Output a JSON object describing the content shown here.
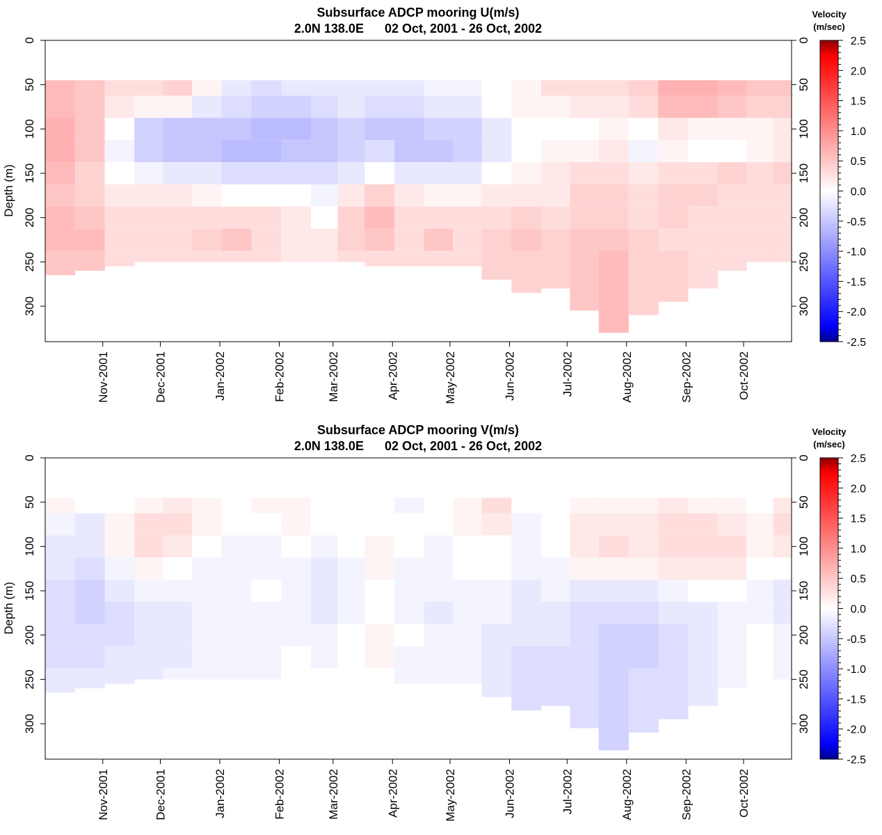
{
  "colorbar": {
    "title_line1": "Velocity",
    "title_line2": "(m/sec)",
    "range": [
      -2.5,
      2.5
    ],
    "tick_labels": [
      "2.5",
      "2.0",
      "1.5",
      "1.0",
      "0.5",
      "0.0",
      "-0.5",
      "-1.0",
      "-1.5",
      "-2.0",
      "-2.5"
    ],
    "colors": {
      "max": "#8b0000",
      "high": "#ff0000",
      "zero": "#ffffff",
      "low": "#0000ff",
      "min": "#00008b"
    }
  },
  "chart_data": [
    {
      "type": "heatmap",
      "title": "Subsurface ADCP mooring U(m/s)",
      "subtitle": "2.0N 138.0E      02 Oct, 2001 - 26 Oct, 2002",
      "xlabel": "",
      "ylabel": "Depth (m)",
      "ylim": [
        0,
        340
      ],
      "y_reversed": true,
      "y_ticks": [
        0,
        50,
        100,
        150,
        200,
        250,
        300
      ],
      "y_tick_labels": [
        "0",
        "50",
        "100",
        "150",
        "200",
        "250",
        "300"
      ],
      "x_start": "2001-10-02",
      "x_end": "2002-10-26",
      "x_tick_labels": [
        "Nov-2001",
        "Dec-2001",
        "Jan-2002",
        "Feb-2002",
        "Mar-2002",
        "Apr-2002",
        "May-2002",
        "Jun-2002",
        "Jul-2002",
        "Aug-2002",
        "Sep-2002",
        "Oct-2002"
      ],
      "x_tick_dates": [
        "2001-11-01",
        "2001-12-01",
        "2002-01-01",
        "2002-02-01",
        "2002-03-01",
        "2002-04-01",
        "2002-05-01",
        "2002-06-01",
        "2002-07-01",
        "2002-08-01",
        "2002-09-01",
        "2002-10-01"
      ],
      "depths": [
        50,
        75,
        100,
        125,
        150,
        175,
        200,
        225,
        250
      ],
      "columns": [
        {
          "date": "2001-10-10",
          "bottom": 265,
          "values": [
            0.6,
            0.6,
            0.7,
            0.7,
            0.6,
            0.5,
            0.6,
            0.6,
            0.5
          ]
        },
        {
          "date": "2001-10-25",
          "bottom": 260,
          "values": [
            0.5,
            0.5,
            0.5,
            0.5,
            0.4,
            0.4,
            0.5,
            0.6,
            0.5
          ]
        },
        {
          "date": "2001-11-10",
          "bottom": 255,
          "values": [
            0.3,
            0.2,
            0.0,
            -0.1,
            0.0,
            0.2,
            0.3,
            0.3,
            0.3
          ]
        },
        {
          "date": "2001-11-25",
          "bottom": 250,
          "values": [
            0.3,
            0.1,
            -0.4,
            -0.4,
            -0.1,
            0.2,
            0.3,
            0.3,
            0.3
          ]
        },
        {
          "date": "2001-12-10",
          "bottom": 250,
          "values": [
            0.4,
            0.1,
            -0.5,
            -0.5,
            -0.2,
            0.2,
            0.3,
            0.3,
            0.3
          ]
        },
        {
          "date": "2001-12-25",
          "bottom": 250,
          "values": [
            0.1,
            -0.2,
            -0.5,
            -0.5,
            -0.2,
            0.1,
            0.3,
            0.4,
            0.3
          ]
        },
        {
          "date": "2002-01-10",
          "bottom": 250,
          "values": [
            -0.2,
            -0.3,
            -0.5,
            -0.6,
            -0.3,
            0.0,
            0.3,
            0.5,
            0.3
          ]
        },
        {
          "date": "2002-01-25",
          "bottom": 250,
          "values": [
            -0.3,
            -0.4,
            -0.6,
            -0.6,
            -0.3,
            0.0,
            0.3,
            0.3,
            0.3
          ]
        },
        {
          "date": "2002-02-10",
          "bottom": 250,
          "values": [
            -0.2,
            -0.4,
            -0.6,
            -0.5,
            -0.3,
            0.0,
            0.2,
            0.2,
            0.2
          ]
        },
        {
          "date": "2002-02-25",
          "bottom": 250,
          "values": [
            -0.2,
            -0.3,
            -0.5,
            -0.5,
            -0.3,
            -0.1,
            0.0,
            0.2,
            0.2
          ]
        },
        {
          "date": "2002-03-10",
          "bottom": 250,
          "values": [
            -0.2,
            -0.2,
            -0.4,
            -0.4,
            -0.2,
            0.2,
            0.4,
            0.4,
            0.3
          ]
        },
        {
          "date": "2002-03-25",
          "bottom": 255,
          "values": [
            -0.2,
            -0.3,
            -0.5,
            -0.3,
            0.0,
            0.4,
            0.6,
            0.5,
            0.3
          ]
        },
        {
          "date": "2002-04-10",
          "bottom": 255,
          "values": [
            -0.2,
            -0.3,
            -0.5,
            -0.5,
            -0.2,
            0.2,
            0.3,
            0.3,
            0.3
          ]
        },
        {
          "date": "2002-04-25",
          "bottom": 255,
          "values": [
            -0.1,
            -0.2,
            -0.4,
            -0.5,
            -0.2,
            0.1,
            0.3,
            0.5,
            0.3
          ]
        },
        {
          "date": "2002-05-10",
          "bottom": 255,
          "values": [
            -0.1,
            -0.2,
            -0.4,
            -0.4,
            -0.2,
            0.1,
            0.3,
            0.3,
            0.3
          ]
        },
        {
          "date": "2002-05-25",
          "bottom": 270,
          "values": [
            0.0,
            0.0,
            -0.2,
            -0.2,
            0.0,
            0.2,
            0.3,
            0.4,
            0.4
          ]
        },
        {
          "date": "2002-06-10",
          "bottom": 285,
          "values": [
            0.1,
            0.1,
            0.0,
            0.0,
            0.1,
            0.2,
            0.4,
            0.5,
            0.4
          ]
        },
        {
          "date": "2002-06-25",
          "bottom": 280,
          "values": [
            0.3,
            0.1,
            0.0,
            0.1,
            0.2,
            0.2,
            0.3,
            0.4,
            0.4
          ]
        },
        {
          "date": "2002-07-10",
          "bottom": 305,
          "values": [
            0.3,
            0.2,
            0.0,
            0.1,
            0.3,
            0.4,
            0.4,
            0.5,
            0.5
          ]
        },
        {
          "date": "2002-07-25",
          "bottom": 330,
          "values": [
            0.3,
            0.2,
            0.1,
            0.2,
            0.3,
            0.4,
            0.4,
            0.5,
            0.6
          ]
        },
        {
          "date": "2002-08-10",
          "bottom": 310,
          "values": [
            0.4,
            0.3,
            0.0,
            -0.1,
            0.2,
            0.3,
            0.3,
            0.4,
            0.4
          ]
        },
        {
          "date": "2002-08-25",
          "bottom": 295,
          "values": [
            0.7,
            0.6,
            0.2,
            0.1,
            0.3,
            0.4,
            0.4,
            0.3,
            0.4
          ]
        },
        {
          "date": "2002-09-10",
          "bottom": 280,
          "values": [
            0.7,
            0.6,
            0.1,
            0.0,
            0.3,
            0.4,
            0.3,
            0.3,
            0.3
          ]
        },
        {
          "date": "2002-09-25",
          "bottom": 260,
          "values": [
            0.6,
            0.5,
            0.1,
            0.0,
            0.4,
            0.3,
            0.3,
            0.3,
            0.3
          ]
        },
        {
          "date": "2002-10-10",
          "bottom": 250,
          "values": [
            0.5,
            0.4,
            0.1,
            0.1,
            0.3,
            0.3,
            0.3,
            0.3,
            0.3
          ]
        },
        {
          "date": "2002-10-23",
          "bottom": 250,
          "values": [
            0.5,
            0.4,
            0.2,
            0.2,
            0.4,
            0.3,
            0.3,
            0.3,
            0.3
          ]
        }
      ]
    },
    {
      "type": "heatmap",
      "title": "Subsurface ADCP mooring V(m/s)",
      "subtitle": "2.0N 138.0E      02 Oct, 2001 - 26 Oct, 2002",
      "xlabel": "",
      "ylabel": "Depth (m)",
      "ylim": [
        0,
        340
      ],
      "y_reversed": true,
      "y_ticks": [
        0,
        50,
        100,
        150,
        200,
        250,
        300
      ],
      "y_tick_labels": [
        "0",
        "50",
        "100",
        "150",
        "200",
        "250",
        "300"
      ],
      "x_start": "2001-10-02",
      "x_end": "2002-10-26",
      "x_tick_labels": [
        "Nov-2001",
        "Dec-2001",
        "Jan-2002",
        "Feb-2002",
        "Mar-2002",
        "Apr-2002",
        "May-2002",
        "Jun-2002",
        "Jul-2002",
        "Aug-2002",
        "Sep-2002",
        "Oct-2002"
      ],
      "x_tick_dates": [
        "2001-11-01",
        "2001-12-01",
        "2002-01-01",
        "2002-02-01",
        "2002-03-01",
        "2002-04-01",
        "2002-05-01",
        "2002-06-01",
        "2002-07-01",
        "2002-08-01",
        "2002-09-01",
        "2002-10-01"
      ],
      "depths": [
        50,
        75,
        100,
        125,
        150,
        175,
        200,
        225,
        250
      ],
      "columns": [
        {
          "date": "2001-10-10",
          "bottom": 265,
          "values": [
            0.1,
            -0.1,
            -0.2,
            -0.2,
            -0.3,
            -0.3,
            -0.3,
            -0.3,
            -0.2
          ]
        },
        {
          "date": "2001-10-25",
          "bottom": 260,
          "values": [
            0.0,
            -0.2,
            -0.2,
            -0.3,
            -0.4,
            -0.4,
            -0.3,
            -0.3,
            -0.2
          ]
        },
        {
          "date": "2001-11-10",
          "bottom": 255,
          "values": [
            0.0,
            0.1,
            0.1,
            -0.1,
            -0.2,
            -0.3,
            -0.3,
            -0.2,
            -0.2
          ]
        },
        {
          "date": "2001-11-25",
          "bottom": 250,
          "values": [
            0.1,
            0.3,
            0.3,
            0.1,
            -0.1,
            -0.2,
            -0.2,
            -0.2,
            -0.2
          ]
        },
        {
          "date": "2001-12-10",
          "bottom": 250,
          "values": [
            0.2,
            0.3,
            0.2,
            0.0,
            -0.1,
            -0.2,
            -0.2,
            -0.2,
            -0.1
          ]
        },
        {
          "date": "2001-12-25",
          "bottom": 250,
          "values": [
            0.1,
            0.1,
            0.0,
            -0.1,
            -0.1,
            -0.1,
            -0.1,
            -0.1,
            -0.1
          ]
        },
        {
          "date": "2002-01-10",
          "bottom": 250,
          "values": [
            0.0,
            0.0,
            -0.1,
            -0.1,
            -0.1,
            -0.1,
            -0.1,
            -0.1,
            -0.1
          ]
        },
        {
          "date": "2002-01-25",
          "bottom": 250,
          "values": [
            0.1,
            0.0,
            -0.1,
            -0.1,
            0.0,
            -0.1,
            -0.1,
            -0.1,
            -0.1
          ]
        },
        {
          "date": "2002-02-10",
          "bottom": 250,
          "values": [
            0.1,
            0.1,
            0.0,
            -0.1,
            -0.1,
            -0.1,
            -0.1,
            0.0,
            0.0
          ]
        },
        {
          "date": "2002-02-25",
          "bottom": 250,
          "values": [
            0.0,
            0.0,
            -0.1,
            -0.2,
            -0.2,
            -0.2,
            -0.1,
            -0.1,
            0.0
          ]
        },
        {
          "date": "2002-03-10",
          "bottom": 250,
          "values": [
            0.0,
            0.0,
            0.0,
            -0.1,
            -0.1,
            -0.1,
            0.0,
            0.0,
            0.0
          ]
        },
        {
          "date": "2002-03-25",
          "bottom": 255,
          "values": [
            0.0,
            0.0,
            0.1,
            0.1,
            0.0,
            0.0,
            0.1,
            0.1,
            0.0
          ]
        },
        {
          "date": "2002-04-10",
          "bottom": 255,
          "values": [
            -0.1,
            0.0,
            0.0,
            -0.1,
            -0.1,
            -0.1,
            0.0,
            -0.1,
            -0.1
          ]
        },
        {
          "date": "2002-04-25",
          "bottom": 255,
          "values": [
            0.0,
            0.0,
            -0.1,
            -0.1,
            -0.1,
            -0.2,
            -0.1,
            -0.1,
            -0.1
          ]
        },
        {
          "date": "2002-05-10",
          "bottom": 255,
          "values": [
            0.1,
            0.1,
            0.0,
            0.0,
            -0.1,
            -0.1,
            -0.1,
            -0.1,
            -0.1
          ]
        },
        {
          "date": "2002-05-25",
          "bottom": 270,
          "values": [
            0.3,
            0.2,
            0.0,
            0.0,
            -0.1,
            -0.1,
            -0.2,
            -0.2,
            -0.2
          ]
        },
        {
          "date": "2002-06-10",
          "bottom": 285,
          "values": [
            0.0,
            -0.1,
            -0.1,
            -0.1,
            -0.2,
            -0.2,
            -0.2,
            -0.3,
            -0.3
          ]
        },
        {
          "date": "2002-06-25",
          "bottom": 280,
          "values": [
            0.0,
            0.0,
            0.0,
            -0.1,
            -0.1,
            -0.2,
            -0.2,
            -0.3,
            -0.3
          ]
        },
        {
          "date": "2002-07-10",
          "bottom": 305,
          "values": [
            0.1,
            0.2,
            0.2,
            0.1,
            -0.2,
            -0.3,
            -0.3,
            -0.3,
            -0.3
          ]
        },
        {
          "date": "2002-07-25",
          "bottom": 330,
          "values": [
            0.1,
            0.2,
            0.3,
            0.1,
            -0.2,
            -0.3,
            -0.4,
            -0.4,
            -0.4
          ]
        },
        {
          "date": "2002-08-10",
          "bottom": 310,
          "values": [
            0.1,
            0.2,
            0.2,
            0.1,
            -0.2,
            -0.3,
            -0.4,
            -0.4,
            -0.3
          ]
        },
        {
          "date": "2002-08-25",
          "bottom": 295,
          "values": [
            0.2,
            0.3,
            0.3,
            0.2,
            -0.1,
            -0.2,
            -0.3,
            -0.3,
            -0.3
          ]
        },
        {
          "date": "2002-09-10",
          "bottom": 280,
          "values": [
            0.1,
            0.3,
            0.3,
            0.2,
            0.0,
            -0.2,
            -0.2,
            -0.2,
            -0.2
          ]
        },
        {
          "date": "2002-09-25",
          "bottom": 260,
          "values": [
            0.1,
            0.2,
            0.3,
            0.2,
            0.0,
            -0.1,
            -0.1,
            -0.1,
            -0.1
          ]
        },
        {
          "date": "2002-10-10",
          "bottom": 250,
          "values": [
            0.0,
            0.1,
            0.1,
            0.0,
            -0.1,
            -0.1,
            0.0,
            0.0,
            0.0
          ]
        },
        {
          "date": "2002-10-23",
          "bottom": 250,
          "values": [
            0.2,
            0.3,
            0.2,
            0.0,
            -0.2,
            -0.2,
            -0.1,
            -0.1,
            -0.1
          ]
        }
      ]
    }
  ]
}
